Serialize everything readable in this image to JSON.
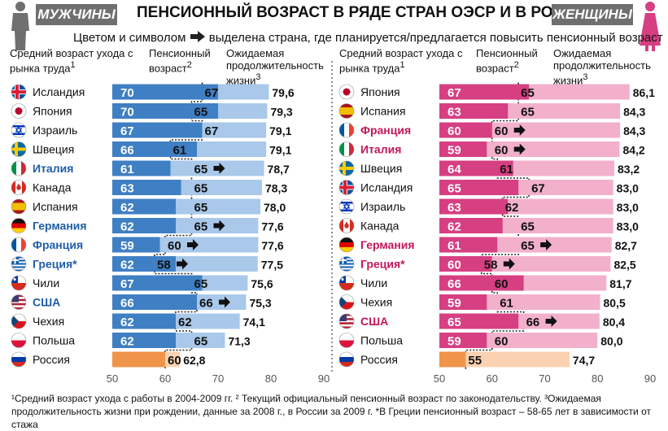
{
  "title": "ПЕНСИОННЫЙ ВОЗРАСТ В РЯДЕ СТРАН ОЭСР И В РОССИИ",
  "men_badge": "МУЖЧИНЫ",
  "women_badge": "ЖЕНЩИНЫ",
  "subtitle_before": "Цветом и символом",
  "subtitle_after": "выделена страна, где планируется/предлагается повысить пенсионный возраст",
  "headers": {
    "exit_age": "Средний возраст ухода с рынка труда",
    "exit_age_sup": "1",
    "pension_age": "Пенсионный возраст",
    "pension_age_sup": "2",
    "life_exp": "Ожидаемая продолжительность жизни",
    "life_exp_sup": "3"
  },
  "footnote": "¹Средний возраст ухода с работы в 2004-2009 гг. ² Текущий официальный пенсионный возраст по законодательству. ³Ожидаемая продолжительность жизни при рождении, данные за 2008 г., в России за 2009 г. *В Греции пенсионный возраст – 58-65 лет в зависимости от стажа",
  "colors": {
    "men_dark": "#3f7fc4",
    "men_light": "#a9c8ea",
    "women_dark": "#d63f82",
    "women_light": "#f2b0cb",
    "russia": "#f0944a",
    "highlight_men": "#1f5ea8",
    "highlight_women": "#c2185b",
    "badge": "#6f6f6f"
  },
  "chart_data": [
    {
      "type": "bar",
      "panel": "Мужчины",
      "xlim": [
        50,
        90
      ],
      "x_ticks": [
        "50",
        "60",
        "70",
        "80",
        "90"
      ],
      "columns": [
        "Средний возраст ухода с рынка труда",
        "Пенсионный возраст",
        "Ожидаемая продолжительность жизни"
      ],
      "rows": [
        {
          "country": "Исландия",
          "flag": "iceland",
          "exit": 70,
          "pension": 67,
          "life": "79,6",
          "lifeVal": 79.6,
          "raise": false
        },
        {
          "country": "Япония",
          "flag": "japan",
          "exit": 70,
          "pension": 65,
          "life": "79,3",
          "lifeVal": 79.3,
          "raise": false
        },
        {
          "country": "Израиль",
          "flag": "israel",
          "exit": 67,
          "pension": 67,
          "life": "79,1",
          "lifeVal": 79.1,
          "raise": false
        },
        {
          "country": "Швеция",
          "flag": "sweden",
          "exit": 66,
          "pension": 61,
          "life": "79,1",
          "lifeVal": 79.1,
          "raise": false
        },
        {
          "country": "Италия",
          "flag": "italy",
          "exit": 61,
          "pension": 65,
          "life": "78,7",
          "lifeVal": 78.7,
          "raise": true
        },
        {
          "country": "Канада",
          "flag": "canada",
          "exit": 63,
          "pension": 65,
          "life": "78,3",
          "lifeVal": 78.3,
          "raise": false
        },
        {
          "country": "Испания",
          "flag": "spain",
          "exit": 62,
          "pension": 65,
          "life": "78,0",
          "lifeVal": 78.0,
          "raise": false
        },
        {
          "country": "Германия",
          "flag": "germany",
          "exit": 62,
          "pension": 65,
          "life": "77,6",
          "lifeVal": 77.6,
          "raise": true
        },
        {
          "country": "Франция",
          "flag": "france",
          "exit": 59,
          "pension": 60,
          "life": "77,6",
          "lifeVal": 77.6,
          "raise": true
        },
        {
          "country": "Греция*",
          "flag": "greece",
          "exit": 62,
          "pension": 58,
          "life": "77,5",
          "lifeVal": 77.5,
          "raise": true
        },
        {
          "country": "Чили",
          "flag": "chile",
          "exit": 67,
          "pension": 65,
          "life": "75,6",
          "lifeVal": 75.6,
          "raise": false
        },
        {
          "country": "США",
          "flag": "usa",
          "exit": 66,
          "pension": 66,
          "life": "75,3",
          "lifeVal": 75.3,
          "raise": true
        },
        {
          "country": "Чехия",
          "flag": "czech",
          "exit": 62,
          "pension": 62,
          "life": "74,1",
          "lifeVal": 74.1,
          "raise": false
        },
        {
          "country": "Польша",
          "flag": "poland",
          "exit": 62,
          "pension": 65,
          "life": "71,3",
          "lifeVal": 71.3,
          "raise": false
        },
        {
          "country": "Россия",
          "flag": "russia",
          "exit": null,
          "pension": 60,
          "life": "62,8",
          "lifeVal": 62.8,
          "raise": false
        }
      ]
    },
    {
      "type": "bar",
      "panel": "Женщины",
      "xlim": [
        50,
        90
      ],
      "x_ticks": [
        "50",
        "60",
        "70",
        "80",
        "90"
      ],
      "columns": [
        "Средний возраст ухода с рынка труда",
        "Пенсионный возраст",
        "Ожидаемая продолжительность жизни"
      ],
      "rows": [
        {
          "country": "Япония",
          "flag": "japan",
          "exit": 67,
          "pension": 65,
          "life": "86,1",
          "lifeVal": 86.1,
          "raise": false
        },
        {
          "country": "Испания",
          "flag": "spain",
          "exit": 63,
          "pension": 65,
          "life": "84,3",
          "lifeVal": 84.3,
          "raise": false
        },
        {
          "country": "Франция",
          "flag": "france",
          "exit": 60,
          "pension": 60,
          "life": "84,3",
          "lifeVal": 84.3,
          "raise": true
        },
        {
          "country": "Италия",
          "flag": "italy",
          "exit": 59,
          "pension": 60,
          "life": "84,2",
          "lifeVal": 84.2,
          "raise": true
        },
        {
          "country": "Швеция",
          "flag": "sweden",
          "exit": 64,
          "pension": 61,
          "life": "83,2",
          "lifeVal": 83.2,
          "raise": false
        },
        {
          "country": "Исландия",
          "flag": "iceland",
          "exit": 65,
          "pension": 67,
          "life": "83,0",
          "lifeVal": 83.0,
          "raise": false
        },
        {
          "country": "Израиль",
          "flag": "israel",
          "exit": 63,
          "pension": 62,
          "life": "83,0",
          "lifeVal": 83.0,
          "raise": false
        },
        {
          "country": "Канада",
          "flag": "canada",
          "exit": 62,
          "pension": 65,
          "life": "83,0",
          "lifeVal": 83.0,
          "raise": false
        },
        {
          "country": "Германия",
          "flag": "germany",
          "exit": 61,
          "pension": 65,
          "life": "82,7",
          "lifeVal": 82.7,
          "raise": true
        },
        {
          "country": "Греция*",
          "flag": "greece",
          "exit": 60,
          "pension": 58,
          "life": "82,5",
          "lifeVal": 82.5,
          "raise": true
        },
        {
          "country": "Чили",
          "flag": "chile",
          "exit": 66,
          "pension": 60,
          "life": "81,7",
          "lifeVal": 81.7,
          "raise": false
        },
        {
          "country": "Чехия",
          "flag": "czech",
          "exit": 59,
          "pension": 61,
          "life": "80,5",
          "lifeVal": 80.5,
          "raise": false
        },
        {
          "country": "США",
          "flag": "usa",
          "exit": 65,
          "pension": 66,
          "life": "80,4",
          "lifeVal": 80.4,
          "raise": true
        },
        {
          "country": "Польша",
          "flag": "poland",
          "exit": 59,
          "pension": 60,
          "life": "80,0",
          "lifeVal": 80.0,
          "raise": false
        },
        {
          "country": "Россия",
          "flag": "russia",
          "exit": null,
          "pension": 55,
          "life": "74,7",
          "lifeVal": 74.7,
          "raise": false
        }
      ]
    }
  ]
}
